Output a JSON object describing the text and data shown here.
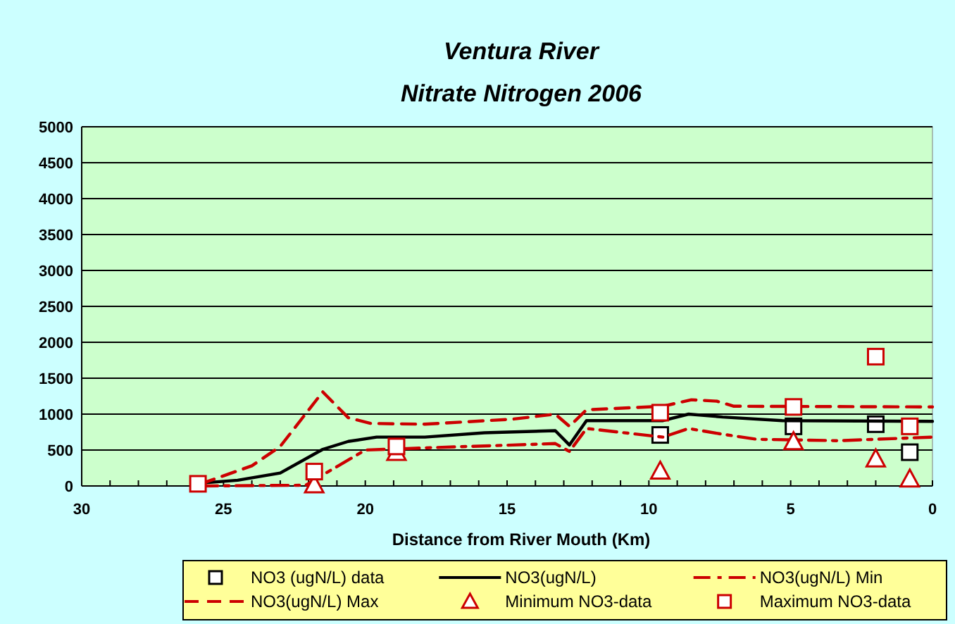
{
  "chart_data": {
    "type": "line",
    "title": "Ventura River\nNitrate Nitrogen 2006",
    "xlabel": "Distance from River Mouth (Km)",
    "xlim": [
      30,
      0
    ],
    "xticks": [
      30,
      25,
      20,
      15,
      10,
      5,
      0
    ],
    "ylim": [
      0,
      5000
    ],
    "yticks": [
      0,
      500,
      1000,
      1500,
      2000,
      2500,
      3000,
      3500,
      4000,
      4500,
      5000
    ],
    "grid": "y",
    "legend": "bottom",
    "series": [
      {
        "name": "NO3 (ugN/L) data",
        "type": "scatter",
        "marker": "square",
        "color": "#000000",
        "x": [
          9.6,
          4.9,
          2.0,
          0.8
        ],
        "values": [
          710,
          830,
          860,
          470
        ]
      },
      {
        "name": "NO3(ugN/L)",
        "line_style": "solid",
        "color": "#000000",
        "x": [
          25.8,
          24.5,
          23.0,
          21.5,
          20.6,
          19.6,
          17.9,
          15.8,
          13.3,
          12.8,
          12.2,
          9.5,
          8.6,
          7.4,
          5.3,
          0
        ],
        "values": [
          40,
          80,
          180,
          510,
          620,
          680,
          680,
          740,
          770,
          570,
          910,
          910,
          1000,
          960,
          910,
          900
        ]
      },
      {
        "name": "NO3(ugN/L) Min",
        "line_style": "dashdot",
        "color": "#cc0000",
        "x": [
          25.8,
          22.1,
          21.3,
          20.0,
          17.9,
          14.8,
          13.3,
          12.8,
          12.2,
          9.5,
          8.6,
          7.4,
          6.2,
          3.3,
          0
        ],
        "values": [
          0,
          10,
          200,
          500,
          530,
          570,
          590,
          480,
          800,
          680,
          800,
          720,
          650,
          630,
          680
        ]
      },
      {
        "name": "NO3(ugN/L) Max",
        "line_style": "dashed",
        "color": "#cc0000",
        "x": [
          25.8,
          24.0,
          23.0,
          21.5,
          20.6,
          19.8,
          17.9,
          14.8,
          13.3,
          12.8,
          12.2,
          9.5,
          8.5,
          7.6,
          7.0,
          0
        ],
        "values": [
          30,
          280,
          550,
          1310,
          950,
          870,
          860,
          930,
          1000,
          830,
          1060,
          1110,
          1200,
          1180,
          1110,
          1100
        ]
      },
      {
        "name": "Minimum NO3-data",
        "type": "scatter",
        "marker": "triangle",
        "color": "#cc0000",
        "x": [
          21.8,
          18.9,
          9.6,
          4.9,
          2.0,
          0.8
        ],
        "values": [
          20,
          470,
          210,
          620,
          380,
          100
        ]
      },
      {
        "name": "Maximum NO3-data",
        "type": "scatter",
        "marker": "square",
        "color": "#cc0000",
        "x": [
          25.9,
          21.8,
          18.9,
          9.6,
          4.9,
          2.0,
          0.8
        ],
        "values": [
          30,
          200,
          550,
          1020,
          1100,
          1800,
          830
        ]
      }
    ]
  }
}
